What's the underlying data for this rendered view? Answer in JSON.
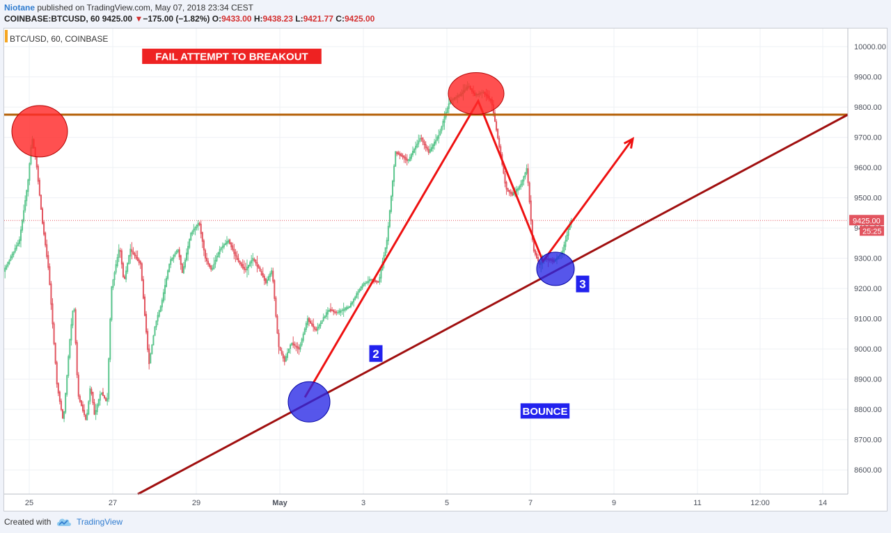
{
  "header": {
    "author": "Niotane",
    "published": "published on TradingView.com, May 07, 2018 23:34 CEST",
    "symbol": "COINBASE:BTCUSD, 60",
    "last": "9425.00",
    "change": "−175.00 (−1.82%)",
    "o_label": "O:",
    "o": "9433.00",
    "h_label": "H:",
    "h": "9438.23",
    "l_label": "L:",
    "l": "9421.77",
    "c_label": "C:",
    "c": "9425.00"
  },
  "footer": {
    "created_with": "Created with",
    "brand": "TradingView"
  },
  "chart_data": {
    "type": "candlestick",
    "legend": "BTC/USD, 60, COINBASE",
    "ylim": [
      8520,
      10060
    ],
    "xlim": [
      0,
      20.2
    ],
    "y_ticks": [
      8600,
      8700,
      8800,
      8900,
      9000,
      9100,
      9200,
      9300,
      9400,
      9500,
      9600,
      9700,
      9800,
      9900,
      10000
    ],
    "y_tick_labels": [
      "8600.00",
      "8700.00",
      "8800.00",
      "8900.00",
      "9000.00",
      "9100.00",
      "9200.00",
      "9300.00",
      "9400.00",
      "9500.00",
      "9600.00",
      "9700.00",
      "9800.00",
      "9900.00",
      "10000.00"
    ],
    "x_ticks": [
      {
        "x": 0.6,
        "label": "25"
      },
      {
        "x": 2.6,
        "label": "27"
      },
      {
        "x": 4.6,
        "label": "29"
      },
      {
        "x": 6.6,
        "label": "May"
      },
      {
        "x": 8.6,
        "label": "3"
      },
      {
        "x": 10.6,
        "label": "5"
      },
      {
        "x": 12.6,
        "label": "7"
      },
      {
        "x": 14.6,
        "label": "9"
      },
      {
        "x": 16.6,
        "label": "11"
      },
      {
        "x": 18.1,
        "label": "12:00"
      },
      {
        "x": 19.6,
        "label": "14"
      }
    ],
    "last_price": {
      "value": 9425,
      "label": "9425.00",
      "countdown": "25:25"
    },
    "path": [
      [
        0,
        9250
      ],
      [
        0.4,
        9360
      ],
      [
        0.6,
        9550
      ],
      [
        0.7,
        9700
      ],
      [
        0.8,
        9620
      ],
      [
        0.95,
        9420
      ],
      [
        1.1,
        9260
      ],
      [
        1.3,
        8880
      ],
      [
        1.45,
        8760
      ],
      [
        1.6,
        9020
      ],
      [
        1.7,
        9160
      ],
      [
        1.8,
        8850
      ],
      [
        2.0,
        8760
      ],
      [
        2.1,
        8880
      ],
      [
        2.2,
        8780
      ],
      [
        2.35,
        8860
      ],
      [
        2.5,
        8820
      ],
      [
        2.6,
        9200
      ],
      [
        2.8,
        9340
      ],
      [
        2.9,
        9220
      ],
      [
        3.05,
        9330
      ],
      [
        3.3,
        9280
      ],
      [
        3.5,
        8950
      ],
      [
        3.65,
        9080
      ],
      [
        3.8,
        9150
      ],
      [
        4.0,
        9290
      ],
      [
        4.2,
        9330
      ],
      [
        4.3,
        9250
      ],
      [
        4.5,
        9380
      ],
      [
        4.7,
        9420
      ],
      [
        4.85,
        9300
      ],
      [
        5.0,
        9260
      ],
      [
        5.2,
        9330
      ],
      [
        5.4,
        9360
      ],
      [
        5.6,
        9300
      ],
      [
        5.8,
        9260
      ],
      [
        6.0,
        9300
      ],
      [
        6.3,
        9220
      ],
      [
        6.45,
        9260
      ],
      [
        6.6,
        9010
      ],
      [
        6.75,
        8960
      ],
      [
        6.9,
        9020
      ],
      [
        7.1,
        9000
      ],
      [
        7.3,
        9100
      ],
      [
        7.5,
        9060
      ],
      [
        7.8,
        9130
      ],
      [
        8.0,
        9120
      ],
      [
        8.3,
        9140
      ],
      [
        8.6,
        9210
      ],
      [
        8.8,
        9230
      ],
      [
        9.0,
        9220
      ],
      [
        9.2,
        9360
      ],
      [
        9.4,
        9650
      ],
      [
        9.55,
        9640
      ],
      [
        9.7,
        9620
      ],
      [
        10.0,
        9700
      ],
      [
        10.2,
        9650
      ],
      [
        10.45,
        9710
      ],
      [
        10.7,
        9820
      ],
      [
        10.95,
        9840
      ],
      [
        11.15,
        9870
      ],
      [
        11.3,
        9840
      ],
      [
        11.5,
        9850
      ],
      [
        11.7,
        9820
      ],
      [
        11.9,
        9660
      ],
      [
        12.05,
        9530
      ],
      [
        12.2,
        9510
      ],
      [
        12.4,
        9540
      ],
      [
        12.55,
        9600
      ],
      [
        12.7,
        9330
      ],
      [
        12.85,
        9280
      ],
      [
        13.0,
        9300
      ],
      [
        13.2,
        9290
      ],
      [
        13.4,
        9320
      ],
      [
        13.6,
        9425
      ]
    ],
    "annotations": {
      "horizontal_resistance": 9775,
      "support_trendline": [
        [
          3.2,
          8520
        ],
        [
          20.2,
          9775
        ]
      ],
      "red_arrow_path": [
        [
          7.2,
          8840
        ],
        [
          11.35,
          9820
        ],
        [
          12.9,
          9290
        ],
        [
          15.05,
          9695
        ]
      ],
      "labels": [
        {
          "text": "FAIL ATTEMPT TO BREAKOUT",
          "x": 5.45,
          "y": 9968,
          "style": "red"
        },
        {
          "text": "2",
          "x": 8.9,
          "y": 8985,
          "style": "blue"
        },
        {
          "text": "3",
          "x": 13.85,
          "y": 9215,
          "style": "blue"
        },
        {
          "text": "BOUNCE",
          "x": 12.95,
          "y": 8795,
          "style": "blue"
        }
      ],
      "red_circles": [
        {
          "cx": 0.85,
          "cy": 9720,
          "rx": 40,
          "ry": 37
        },
        {
          "cx": 11.3,
          "cy": 9845,
          "rx": 40,
          "ry": 30
        }
      ],
      "blue_circles": [
        {
          "cx": 7.3,
          "cy": 8825,
          "rx": 30,
          "ry": 29
        },
        {
          "cx": 13.2,
          "cy": 9265,
          "rx": 27,
          "ry": 24
        }
      ]
    },
    "colors": {
      "up": "#5ac58c",
      "down": "#e2545f",
      "resistance": "#b45f06",
      "trendline": "#a00f0f",
      "arrow": "#ee1111",
      "red_marker": "#ff2a2a",
      "blue_marker": "#2626e6",
      "label_red_bg": "#ee2222",
      "label_blue_bg": "#2222ee"
    }
  }
}
